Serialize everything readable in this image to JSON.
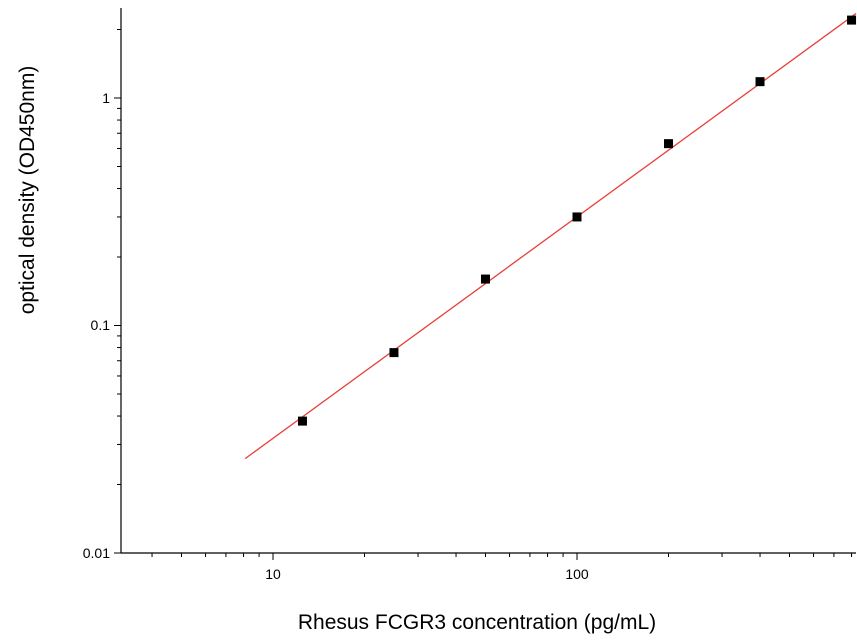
{
  "chart_data": {
    "type": "scatter",
    "title": "",
    "xlabel": "Rhesus FCGR3 concentration (pg/mL)",
    "ylabel": "optical density (OD450nm)",
    "xscale": "log",
    "yscale": "log",
    "xlim": [
      3.1,
      850
    ],
    "ylim": [
      0.01,
      2.5
    ],
    "x_tick_labels": [
      "10",
      "100"
    ],
    "y_tick_labels": [
      "0.01",
      "0.1",
      "1"
    ],
    "grid": false,
    "legend": "none",
    "points": [
      {
        "x": 12.5,
        "y": 0.038
      },
      {
        "x": 25,
        "y": 0.076
      },
      {
        "x": 50,
        "y": 0.16
      },
      {
        "x": 100,
        "y": 0.3
      },
      {
        "x": 200,
        "y": 0.63
      },
      {
        "x": 400,
        "y": 1.18
      },
      {
        "x": 800,
        "y": 2.2
      }
    ],
    "fit_line": {
      "x_start": 8.1,
      "y_start": 0.026,
      "x_end": 850,
      "y_end": 2.35
    },
    "colors": {
      "points": "#000000",
      "fit_line": "#e8403a",
      "axes": "#000000"
    }
  }
}
